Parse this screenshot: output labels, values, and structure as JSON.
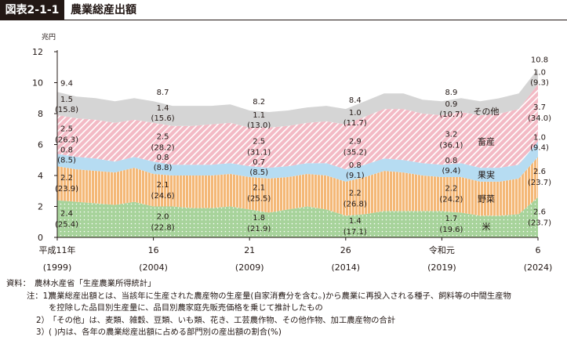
{
  "header": {
    "figure_no": "図表2-1-1",
    "title": "農業総産出額"
  },
  "chart_data": {
    "type": "area",
    "title": "農業総産出額",
    "ylabel": "兆円",
    "ylim": [
      0,
      12
    ],
    "yticks": [
      "0",
      "2",
      "4",
      "6",
      "8",
      "10",
      "12"
    ],
    "grid": false,
    "legend": "inline-right",
    "colors": {
      "rice": "#a7d39b",
      "vegetables": "#f4b877",
      "fruit": "#b6dcf2",
      "livestock": "#f3bac5",
      "other": "#d5d5d5"
    },
    "x_years": [
      1999,
      2000,
      2001,
      2002,
      2003,
      2004,
      2005,
      2006,
      2007,
      2008,
      2009,
      2010,
      2011,
      2012,
      2013,
      2014,
      2015,
      2016,
      2017,
      2018,
      2019,
      2020,
      2021,
      2022,
      2023,
      2024
    ],
    "series": [
      {
        "name": "米",
        "values": [
          2.4,
          2.3,
          2.2,
          2.1,
          2.3,
          2.0,
          2.0,
          1.9,
          1.9,
          2.0,
          1.8,
          1.6,
          1.8,
          2.0,
          1.8,
          1.4,
          1.5,
          1.7,
          1.7,
          1.7,
          1.7,
          1.6,
          1.4,
          1.4,
          1.5,
          2.6
        ]
      },
      {
        "name": "野菜",
        "values": [
          2.2,
          2.1,
          2.1,
          2.1,
          2.2,
          2.1,
          2.0,
          2.1,
          2.1,
          2.1,
          2.1,
          2.2,
          2.1,
          2.1,
          2.2,
          2.2,
          2.4,
          2.6,
          2.5,
          2.3,
          2.2,
          2.3,
          2.2,
          2.2,
          2.3,
          2.6
        ]
      },
      {
        "name": "果実",
        "values": [
          0.8,
          0.8,
          0.8,
          0.7,
          0.7,
          0.8,
          0.7,
          0.7,
          0.7,
          0.7,
          0.7,
          0.7,
          0.7,
          0.7,
          0.8,
          0.8,
          0.8,
          0.8,
          0.8,
          0.8,
          0.8,
          0.9,
          0.9,
          0.9,
          0.9,
          1.0
        ]
      },
      {
        "name": "畜産",
        "values": [
          2.5,
          2.5,
          2.5,
          2.5,
          2.4,
          2.5,
          2.5,
          2.5,
          2.6,
          2.6,
          2.5,
          2.6,
          2.6,
          2.6,
          2.7,
          2.9,
          3.1,
          3.2,
          3.3,
          3.2,
          3.2,
          3.3,
          3.4,
          3.5,
          3.6,
          3.7
        ]
      },
      {
        "name": "その他",
        "values": [
          1.5,
          1.4,
          1.4,
          1.4,
          1.4,
          1.4,
          1.3,
          1.3,
          1.2,
          1.2,
          1.1,
          1.0,
          1.0,
          1.0,
          1.0,
          1.0,
          1.0,
          1.0,
          1.0,
          0.9,
          0.9,
          0.9,
          0.9,
          1.0,
          1.0,
          1.0
        ]
      }
    ],
    "x_ticks": [
      {
        "year": 1999,
        "era": "平成11年",
        "western": "(1999)"
      },
      {
        "year": 2004,
        "era": "16",
        "western": "(2004)"
      },
      {
        "year": 2009,
        "era": "21",
        "western": "(2009)"
      },
      {
        "year": 2014,
        "era": "26",
        "western": "(2014)"
      },
      {
        "year": 2019,
        "era": "令和元",
        "western": "(2019)"
      },
      {
        "year": 2024,
        "era": "6",
        "western": "(2024)"
      }
    ],
    "annotations": [
      {
        "year": 1999,
        "total": "9.4",
        "other": [
          "1.5",
          "(15.8)"
        ],
        "livestock": [
          "2.5",
          "(26.3)"
        ],
        "fruit": [
          "0.8",
          "(8.5)"
        ],
        "vegetables": [
          "2.2",
          "(23.9)"
        ],
        "rice": [
          "2.4",
          "(25.4)"
        ]
      },
      {
        "year": 2004,
        "total": "8.7",
        "other": [
          "1.4",
          "(15.6)"
        ],
        "livestock": [
          "2.5",
          "(28.2)"
        ],
        "fruit": [
          "0.8",
          "(8.8)"
        ],
        "vegetables": [
          "2.1",
          "(24.6)"
        ],
        "rice": [
          "2.0",
          "(22.8)"
        ]
      },
      {
        "year": 2009,
        "total": "8.2",
        "other": [
          "1.1",
          "(13.0)"
        ],
        "livestock": [
          "2.5",
          "(31.1)"
        ],
        "fruit": [
          "0.7",
          "(8.5)"
        ],
        "vegetables": [
          "2.1",
          "(25.5)"
        ],
        "rice": [
          "1.8",
          "(21.9)"
        ]
      },
      {
        "year": 2014,
        "total": "8.4",
        "other": [
          "1.0",
          "(11.7)"
        ],
        "livestock": [
          "2.9",
          "(35.2)"
        ],
        "fruit": [
          "0.8",
          "(9.1)"
        ],
        "vegetables": [
          "2.2",
          "(26.8)"
        ],
        "rice": [
          "1.4",
          "(17.1)"
        ]
      },
      {
        "year": 2019,
        "total": "8.9",
        "other": [
          "0.9",
          "(10.7)"
        ],
        "livestock": [
          "3.2",
          "(36.1)"
        ],
        "fruit": [
          "0.8",
          "(9.4)"
        ],
        "vegetables": [
          "2.2",
          "(24.2)"
        ],
        "rice": [
          "1.7",
          "(19.6)"
        ]
      },
      {
        "year": 2024,
        "total": "10.8",
        "other": [
          "1.0",
          "(9.3)"
        ],
        "livestock": [
          "3.7",
          "(34.0)"
        ],
        "fruit": [
          "1.0",
          "(9.4)"
        ],
        "vegetables": [
          "2.6",
          "(23.7)"
        ],
        "rice": [
          "2.6",
          "(23.7)"
        ]
      }
    ]
  },
  "notes": {
    "source_label": "資料：",
    "source": "農林水産省「生産農業所得統計」",
    "note_label": "注：1）",
    "note1_line1": "農業総産出額とは、当該年に生産された農産物の生産量(自家消費分を含む。)から農業に再投入される種子、飼料等の中間生産物",
    "note1_line2": "を控除した品目別生産量に、品目別農家庭先販売価格を乗じて推計したもの",
    "note2_label": "2）",
    "note2": "「その他」は、麦類、雑穀、豆類、いも類、花き、工芸農作物、その他作物、加工農産物の合計",
    "note3_label": "3）",
    "note3": "( )内は、各年の農業総産出額に占める部門別の産出額の割合(%)"
  }
}
